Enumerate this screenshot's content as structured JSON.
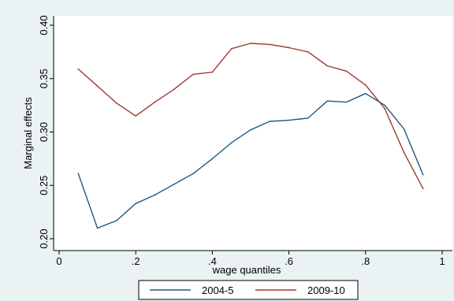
{
  "colors": {
    "background": "#eaf2f3",
    "plot_area": "#ffffff",
    "series_2004": "#1f5a82",
    "series_2009": "#9c3b32"
  },
  "chart_data": {
    "type": "line",
    "title": "",
    "xlabel": "wage quantiles",
    "ylabel": "Marginal effects",
    "xlim": [
      0,
      1
    ],
    "ylim": [
      0.2,
      0.4
    ],
    "x_ticks": [
      0,
      0.2,
      0.4,
      0.6,
      0.8,
      1
    ],
    "x_tick_labels": [
      "0",
      ".2",
      ".4",
      ".6",
      ".8",
      "1"
    ],
    "y_ticks": [
      0.2,
      0.25,
      0.3,
      0.35,
      0.4
    ],
    "y_tick_labels": [
      "0.20",
      "0.25",
      "0.30",
      "0.35",
      "0.40"
    ],
    "grid": false,
    "legend_position": "bottom",
    "x": [
      0.05,
      0.1,
      0.15,
      0.2,
      0.25,
      0.3,
      0.35,
      0.4,
      0.45,
      0.5,
      0.55,
      0.6,
      0.65,
      0.7,
      0.75,
      0.8,
      0.85,
      0.9,
      0.95
    ],
    "series": [
      {
        "name": "2004-5",
        "color": "#1f5a82",
        "values": [
          0.261,
          0.21,
          0.217,
          0.233,
          0.241,
          0.251,
          0.261,
          0.275,
          0.29,
          0.302,
          0.31,
          0.311,
          0.313,
          0.329,
          0.328,
          0.336,
          0.325,
          0.303,
          0.26
        ]
      },
      {
        "name": "2009-10",
        "color": "#9c3b32",
        "values": [
          0.359,
          0.343,
          0.327,
          0.315,
          0.328,
          0.34,
          0.354,
          0.356,
          0.378,
          0.383,
          0.382,
          0.379,
          0.375,
          0.362,
          0.357,
          0.344,
          0.322,
          0.281,
          0.247
        ]
      }
    ]
  }
}
